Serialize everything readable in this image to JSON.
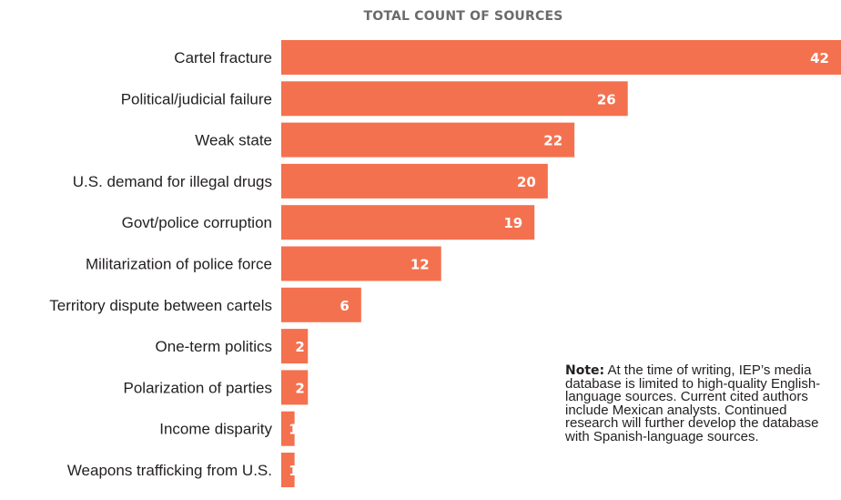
{
  "chart_data": {
    "type": "bar",
    "orientation": "horizontal",
    "title": "TOTAL COUNT OF SOURCES",
    "xlabel": "",
    "ylabel": "",
    "categories": [
      "Cartel fracture",
      "Political/judicial failure",
      "Weak state",
      "U.S. demand for illegal drugs",
      "Govt/police corruption",
      "Militarization of police force",
      "Territory dispute between cartels",
      "One-term politics",
      "Polarization of parties",
      "Income disparity",
      "Weapons trafficking from U.S."
    ],
    "values": [
      42,
      26,
      22,
      20,
      19,
      12,
      6,
      2,
      2,
      1,
      1
    ],
    "xlim": [
      0,
      42
    ],
    "grid": false,
    "bar_color": "#f4714f"
  },
  "note": {
    "lead": "Note:",
    "text": "At the time of writing, IEP’s media database is limited to high-quality English-language sources. Current cited authors include Mexican analysts. Continued research will further develop the database with Spanish-language sources."
  }
}
